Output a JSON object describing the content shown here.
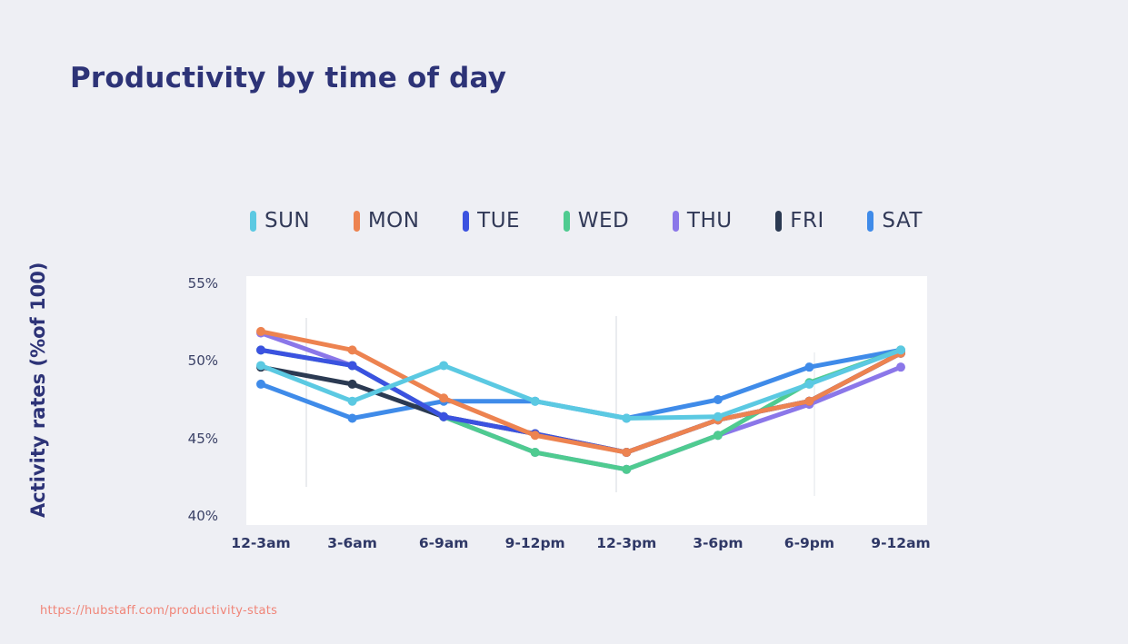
{
  "page": {
    "title": "Productivity by time of day",
    "footer_url": "https://hubstaff.com/productivity-stats",
    "background_color": "#EEEFF4",
    "title_color": "#2D3377",
    "panel_color": "#FFFFFF",
    "footer_color": "#F08578"
  },
  "chart_data": {
    "type": "line",
    "title": "Productivity by time of day",
    "xlabel": "",
    "ylabel": "Activity rates (%of 100)",
    "ylim": [
      40,
      55
    ],
    "y_ticks": [
      {
        "value": 55,
        "label": "55%"
      },
      {
        "value": 50,
        "label": "50%"
      },
      {
        "value": 45,
        "label": "45%"
      },
      {
        "value": 40,
        "label": "40%"
      }
    ],
    "categories": [
      "12-3am",
      "3-6am",
      "6-9am",
      "9-12pm",
      "12-3pm",
      "3-6pm",
      "6-9pm",
      "9-12am"
    ],
    "legend_position": "top",
    "grid": "faint-vertical-only",
    "series": [
      {
        "name": "SUN",
        "color": "#5BC9E2",
        "values": [
          49.7,
          47.4,
          49.7,
          47.4,
          46.3,
          46.4,
          48.5,
          50.7
        ]
      },
      {
        "name": "MON",
        "color": "#ED8350",
        "values": [
          51.9,
          50.7,
          47.6,
          45.2,
          44.1,
          46.2,
          47.4,
          50.5
        ]
      },
      {
        "name": "TUE",
        "color": "#3B52E0",
        "values": [
          50.7,
          49.7,
          46.4,
          45.3,
          44.1,
          46.2,
          47.4,
          50.5
        ]
      },
      {
        "name": "WED",
        "color": "#4FCB90",
        "values": [
          50.7,
          49.7,
          46.4,
          44.1,
          43.0,
          45.2,
          48.6,
          50.7
        ]
      },
      {
        "name": "THU",
        "color": "#8B77E9",
        "values": [
          51.8,
          49.7,
          46.4,
          44.1,
          43.0,
          45.2,
          47.2,
          49.6
        ]
      },
      {
        "name": "FRI",
        "color": "#2B3A52",
        "values": [
          49.6,
          48.5,
          46.4,
          45.3,
          44.1,
          46.2,
          47.4,
          50.5
        ]
      },
      {
        "name": "SAT",
        "color": "#3F8BE9",
        "values": [
          48.5,
          46.3,
          47.4,
          47.4,
          46.3,
          47.5,
          49.6,
          50.7
        ]
      }
    ]
  }
}
